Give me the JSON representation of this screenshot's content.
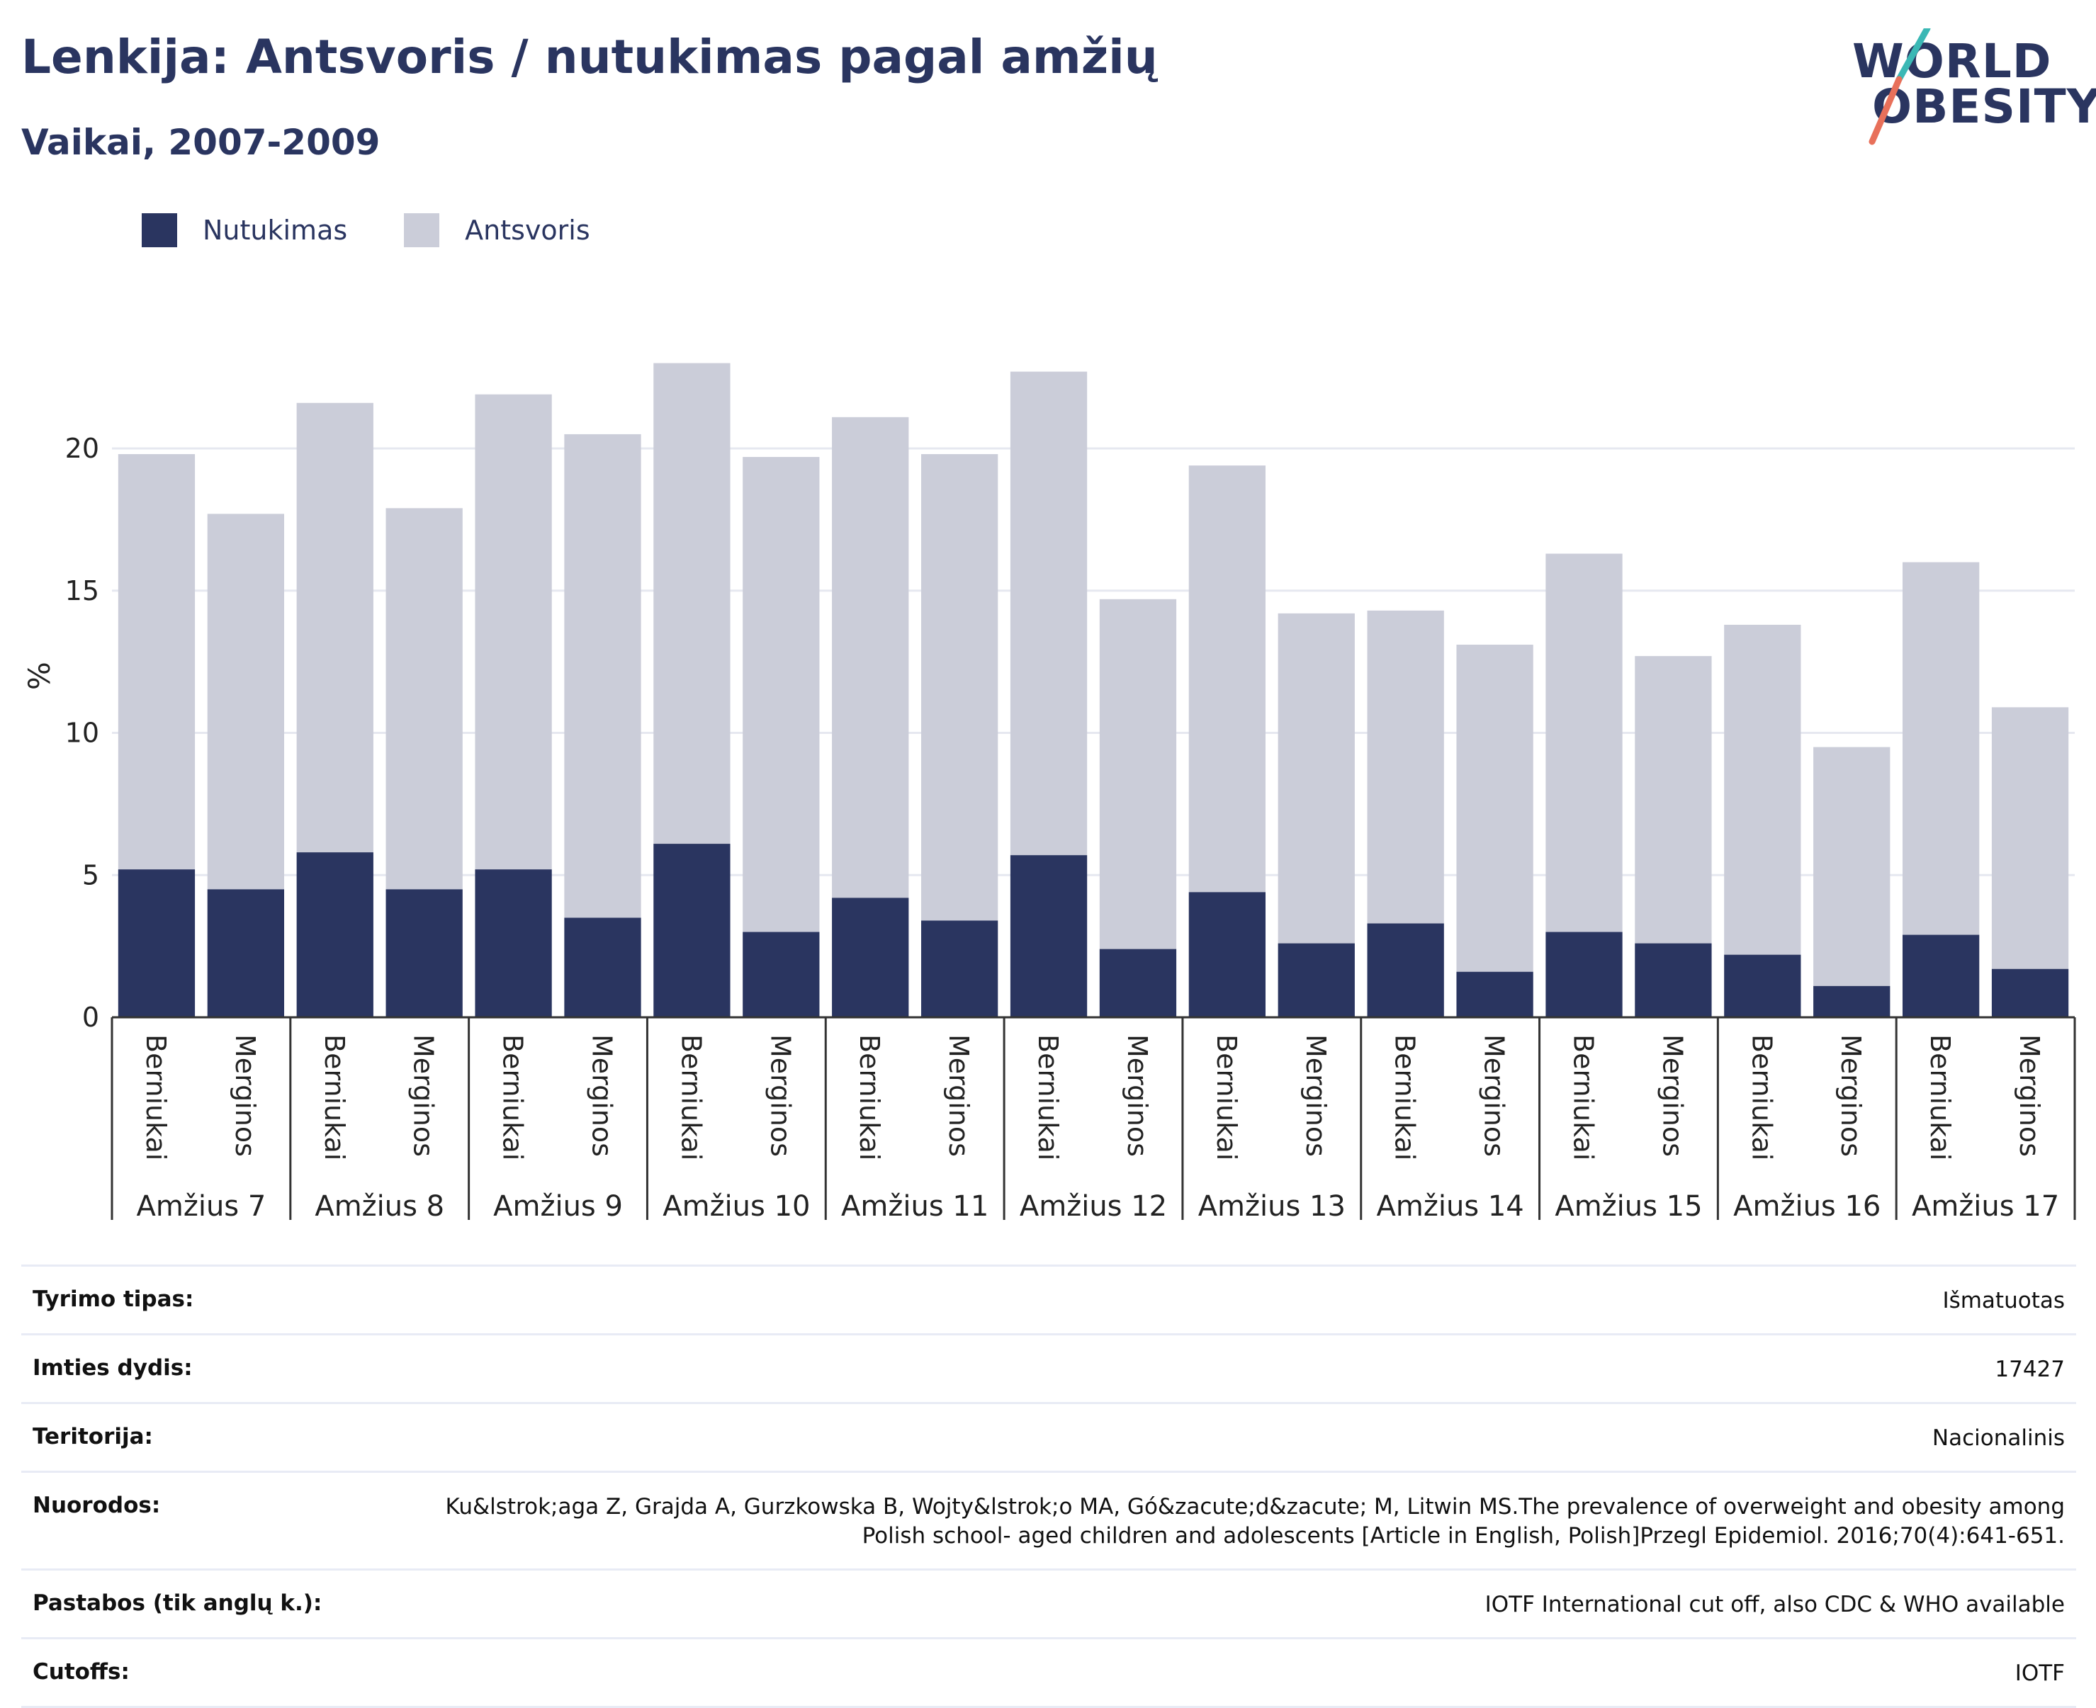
{
  "header": {
    "title": "Lenkija: Antsvoris / nutukimas pagal amžių",
    "subtitle": "Vaikai, 2007-2009"
  },
  "logo": {
    "line1": "WORLD",
    "line2": "OBESITY"
  },
  "colors": {
    "obesity": "#2a3560",
    "overweight": "#cbcdd9",
    "grid": "#e6e8f0",
    "text": "#2a3560"
  },
  "legend": [
    {
      "label": "Nutukimas",
      "color": "#2a3560"
    },
    {
      "label": "Antsvoris",
      "color": "#cbcdd9"
    }
  ],
  "chart_data": {
    "type": "bar",
    "stacked": true,
    "ylabel": "%",
    "ylim": [
      0,
      25
    ],
    "yticks": [
      0,
      5,
      10,
      15,
      20
    ],
    "grid": true,
    "legend_position": "top-left",
    "groups": [
      "Amžius 7",
      "Amžius 8",
      "Amžius 9",
      "Amžius 10",
      "Amžius 11",
      "Amžius 12",
      "Amžius 13",
      "Amžius 14",
      "Amžius 15",
      "Amžius 16",
      "Amžius 17"
    ],
    "subcategories": [
      "Berniukai",
      "Merginos"
    ],
    "series": [
      {
        "name": "Nutukimas",
        "values": [
          5.2,
          4.5,
          5.8,
          4.5,
          5.2,
          3.5,
          6.1,
          3.0,
          4.2,
          3.4,
          5.7,
          2.4,
          4.4,
          2.6,
          3.3,
          1.6,
          3.0,
          2.6,
          2.2,
          1.1,
          2.9,
          1.7
        ]
      },
      {
        "name": "Antsvoris",
        "values": [
          14.6,
          13.2,
          15.8,
          13.4,
          16.7,
          17.0,
          16.9,
          16.7,
          16.9,
          16.4,
          17.0,
          12.3,
          15.0,
          11.6,
          11.0,
          11.5,
          13.3,
          10.1,
          11.6,
          8.4,
          13.1,
          9.2
        ]
      }
    ]
  },
  "info": [
    {
      "label": "Tyrimo tipas:",
      "value": "Išmatuotas"
    },
    {
      "label": "Imties dydis:",
      "value": "17427"
    },
    {
      "label": "Teritorija:",
      "value": "Nacionalinis"
    },
    {
      "label": "Nuorodos:",
      "value": "Ku&lstrok;aga Z, Grajda A, Gurzkowska B, Wojty&lstrok;o MA, Gó&zacute;d&zacute; M, Litwin MS.The prevalence of overweight and obesity among Polish school- aged children and adolescents [Article in English, Polish]Przegl Epidemiol. 2016;70(4):641-651."
    },
    {
      "label": "Pastabos (tik anglų k.):",
      "value": "IOTF International cut off, also CDC & WHO available"
    },
    {
      "label": "Cutoffs:",
      "value": "IOTF"
    }
  ]
}
